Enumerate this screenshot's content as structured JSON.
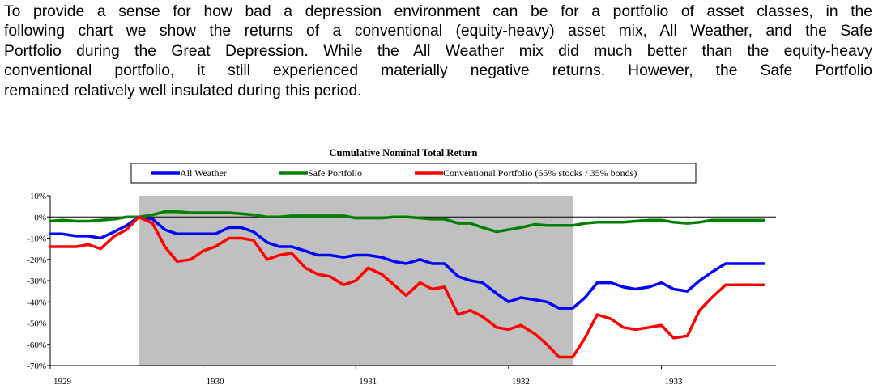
{
  "intro": {
    "line1": "To provide a sense for how bad a depression environment can be for a portfolio of asset classes, in the",
    "line2": "following chart we show the returns of a conventional (equity-heavy) asset mix, All Weather, and the Safe",
    "line3": "Portfolio during the Great Depression.  While the All Weather mix did much better than the equity-heavy",
    "line4": "conventional portfolio, it still experienced materially negative returns.  However, the Safe Portfolio",
    "line5": "remained relatively well insulated during this period."
  },
  "chart_data": {
    "type": "line",
    "title": "Cumulative Nominal Total Return",
    "xlabel": "",
    "ylabel": "",
    "x_tick_labels": [
      "1929",
      "1930",
      "1931",
      "1932",
      "1933"
    ],
    "y_tick_labels": [
      "10%",
      "0%",
      "-10%",
      "-20%",
      "-30%",
      "-40%",
      "-50%",
      "-60%",
      "-70%"
    ],
    "ylim": [
      -70,
      10
    ],
    "xlim": [
      1929.0,
      1933.75
    ],
    "shaded_region": {
      "from": 1929.58,
      "to": 1932.42,
      "color": "#c0c0c0"
    },
    "legend_position": "top",
    "x": [
      1929.0,
      1929.08,
      1929.17,
      1929.25,
      1929.33,
      1929.42,
      1929.5,
      1929.58,
      1929.67,
      1929.75,
      1929.83,
      1929.92,
      1930.0,
      1930.08,
      1930.17,
      1930.25,
      1930.33,
      1930.42,
      1930.5,
      1930.58,
      1930.67,
      1930.75,
      1930.83,
      1930.92,
      1931.0,
      1931.08,
      1931.17,
      1931.25,
      1931.33,
      1931.42,
      1931.5,
      1931.58,
      1931.67,
      1931.75,
      1931.83,
      1931.92,
      1932.0,
      1932.08,
      1932.17,
      1932.25,
      1932.33,
      1932.42,
      1932.5,
      1932.58,
      1932.67,
      1932.75,
      1932.83,
      1932.92,
      1933.0,
      1933.08,
      1933.17,
      1933.25,
      1933.33,
      1933.42,
      1933.5,
      1933.58,
      1933.67
    ],
    "series": [
      {
        "name": "All Weather",
        "color": "#0000ff",
        "values": [
          -8,
          -8,
          -9,
          -9,
          -10,
          -7,
          -4,
          0,
          -1,
          -6,
          -8,
          -8,
          -8,
          -8,
          -5,
          -5,
          -7,
          -12,
          -14,
          -14,
          -16,
          -18,
          -18,
          -19,
          -18,
          -18,
          -19,
          -21,
          -22,
          -20,
          -22,
          -22,
          -28,
          -30,
          -31,
          -36,
          -40,
          -38,
          -39,
          -40,
          -43,
          -43,
          -38,
          -31,
          -31,
          -33,
          -34,
          -33,
          -31,
          -34,
          -35,
          -30,
          -26,
          -22,
          -22,
          -22,
          -22
        ]
      },
      {
        "name": "Safe Portfolio",
        "color": "#008000",
        "values": [
          -2,
          -1.5,
          -2,
          -2,
          -1.5,
          -1,
          0,
          0,
          1,
          2.5,
          2.5,
          2,
          2,
          2,
          2,
          1.5,
          1,
          0,
          0,
          0.5,
          0.5,
          0.5,
          0.5,
          0.5,
          -0.5,
          -0.5,
          -0.5,
          0,
          0,
          -0.5,
          -1,
          -1,
          -3,
          -3,
          -5,
          -7,
          -6,
          -5,
          -3.5,
          -4,
          -4,
          -4,
          -3,
          -2.5,
          -2.5,
          -2.5,
          -2,
          -1.5,
          -1.5,
          -2.5,
          -3,
          -2.5,
          -1.5,
          -1.5,
          -1.5,
          -1.5,
          -1.5
        ]
      },
      {
        "name": "Conventional Portfolio (65% stocks / 35% bonds)",
        "color": "#ff0000",
        "values": [
          -14,
          -14,
          -14,
          -13,
          -15,
          -9,
          -6,
          0,
          -3,
          -14,
          -21,
          -20,
          -16,
          -14,
          -10,
          -10,
          -11,
          -20,
          -18,
          -17,
          -24,
          -27,
          -28,
          -32,
          -30,
          -24,
          -27,
          -32,
          -37,
          -31,
          -34,
          -33,
          -46,
          -44,
          -47,
          -52,
          -53,
          -51,
          -55,
          -60,
          -66,
          -66,
          -57,
          -46,
          -48,
          -52,
          -53,
          -52,
          -51,
          -57,
          -56,
          -44,
          -38,
          -32,
          -32,
          -32,
          -32
        ]
      }
    ]
  }
}
